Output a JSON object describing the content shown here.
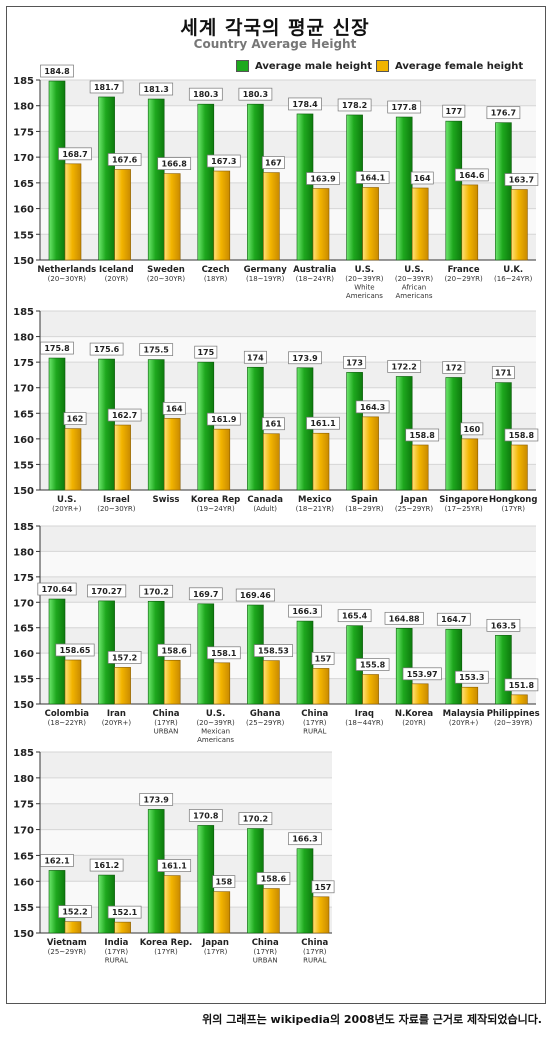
{
  "title": "세계 각국의 평균 신장",
  "subtitle": "Country Average Height",
  "legend": {
    "male": "Average male height",
    "female": "Average female height"
  },
  "colors": {
    "male": "#1ea81e",
    "female": "#f2b400"
  },
  "footnote": "위의 그래프는 wikipedia의 2008년도 자료를 근거로 제작되었습니다.",
  "chart_data": [
    {
      "type": "bar",
      "ylim": [
        150,
        185
      ],
      "yticks": [
        150,
        155,
        160,
        165,
        170,
        175,
        180,
        185
      ],
      "categories": [
        {
          "name": "Netherlands",
          "sub": [
            "(20~30YR)"
          ]
        },
        {
          "name": "Iceland",
          "sub": [
            "(20YR)"
          ]
        },
        {
          "name": "Sweden",
          "sub": [
            "(20~30YR)"
          ]
        },
        {
          "name": "Czech",
          "sub": [
            "(18YR)"
          ]
        },
        {
          "name": "Germany",
          "sub": [
            "(18~19YR)"
          ]
        },
        {
          "name": "Australia",
          "sub": [
            "(18~24YR)"
          ]
        },
        {
          "name": "U.S.",
          "sub": [
            "(20~39YR)",
            "White",
            "Americans"
          ]
        },
        {
          "name": "U.S.",
          "sub": [
            "(20~39YR)",
            "African",
            "Americans"
          ]
        },
        {
          "name": "France",
          "sub": [
            "(20~29YR)"
          ]
        },
        {
          "name": "U.K.",
          "sub": [
            "(16~24YR)"
          ]
        }
      ],
      "series": [
        {
          "name": "Average male height",
          "values": [
            184.8,
            181.7,
            181.3,
            180.3,
            180.3,
            178.4,
            178.2,
            177.8,
            177,
            176.7
          ]
        },
        {
          "name": "Average female height",
          "values": [
            168.7,
            167.6,
            166.8,
            167.3,
            167,
            163.9,
            164.1,
            164,
            164.6,
            163.7
          ]
        }
      ]
    },
    {
      "type": "bar",
      "ylim": [
        150,
        185
      ],
      "yticks": [
        150,
        155,
        160,
        165,
        170,
        175,
        180,
        185
      ],
      "categories": [
        {
          "name": "U.S.",
          "sub": [
            "(20YR+)"
          ]
        },
        {
          "name": "Israel",
          "sub": [
            "(20~30YR)"
          ]
        },
        {
          "name": "Swiss",
          "sub": []
        },
        {
          "name": "Korea Rep",
          "sub": [
            "(19~24YR)"
          ]
        },
        {
          "name": "Canada",
          "sub": [
            "(Adult)"
          ]
        },
        {
          "name": "Mexico",
          "sub": [
            "(18~21YR)"
          ]
        },
        {
          "name": "Spain",
          "sub": [
            "(18~29YR)"
          ]
        },
        {
          "name": "Japan",
          "sub": [
            "(25~29YR)"
          ]
        },
        {
          "name": "Singapore",
          "sub": [
            "(17~25YR)"
          ]
        },
        {
          "name": "Hongkong",
          "sub": [
            "(17YR)"
          ]
        }
      ],
      "series": [
        {
          "name": "Average male height",
          "values": [
            175.8,
            175.6,
            175.5,
            175,
            174,
            173.9,
            173,
            172.2,
            172,
            171
          ]
        },
        {
          "name": "Average female height",
          "values": [
            162,
            162.7,
            164,
            161.9,
            161,
            161.1,
            164.3,
            158.8,
            160,
            158.8
          ]
        }
      ]
    },
    {
      "type": "bar",
      "ylim": [
        150,
        185
      ],
      "yticks": [
        150,
        155,
        160,
        165,
        170,
        175,
        180,
        185
      ],
      "categories": [
        {
          "name": "Colombia",
          "sub": [
            "(18~22YR)"
          ]
        },
        {
          "name": "Iran",
          "sub": [
            "(20YR+)"
          ]
        },
        {
          "name": "China",
          "sub": [
            "(17YR)",
            "URBAN"
          ]
        },
        {
          "name": "U.S.",
          "sub": [
            "(20~39YR)",
            "Mexican",
            "Americans"
          ]
        },
        {
          "name": "Ghana",
          "sub": [
            "(25~29YR)"
          ]
        },
        {
          "name": "China",
          "sub": [
            "(17YR)",
            "RURAL"
          ]
        },
        {
          "name": "Iraq",
          "sub": [
            "(18~44YR)"
          ]
        },
        {
          "name": "N.Korea",
          "sub": [
            "(20YR)"
          ]
        },
        {
          "name": "Malaysia",
          "sub": [
            "(20YR+)"
          ]
        },
        {
          "name": "Philippines",
          "sub": [
            "(20~39YR)"
          ]
        }
      ],
      "series": [
        {
          "name": "Average male height",
          "values": [
            170.64,
            170.27,
            170.2,
            169.7,
            169.46,
            166.3,
            165.4,
            164.88,
            164.7,
            163.5
          ]
        },
        {
          "name": "Average female height",
          "values": [
            158.65,
            157.2,
            158.6,
            158.1,
            158.53,
            157,
            155.8,
            153.97,
            153.3,
            151.8
          ]
        }
      ]
    },
    {
      "type": "bar",
      "ylim": [
        150,
        185
      ],
      "yticks": [
        150,
        155,
        160,
        165,
        170,
        175,
        180,
        185
      ],
      "categories": [
        {
          "name": "Vietnam",
          "sub": [
            "(25~29YR)"
          ]
        },
        {
          "name": "India",
          "sub": [
            "(17YR)",
            "RURAL"
          ]
        },
        {
          "name": "Korea Rep.",
          "sub": [
            "(17YR)"
          ]
        },
        {
          "name": "Japan",
          "sub": [
            "(17YR)"
          ]
        },
        {
          "name": "China",
          "sub": [
            "(17YR)",
            "URBAN"
          ]
        },
        {
          "name": "China",
          "sub": [
            "(17YR)",
            "RURAL"
          ]
        }
      ],
      "series": [
        {
          "name": "Average male height",
          "values": [
            162.1,
            161.2,
            173.9,
            170.8,
            170.2,
            166.3
          ]
        },
        {
          "name": "Average female height",
          "values": [
            152.2,
            152.1,
            161.1,
            158,
            158.6,
            157
          ]
        }
      ]
    }
  ]
}
